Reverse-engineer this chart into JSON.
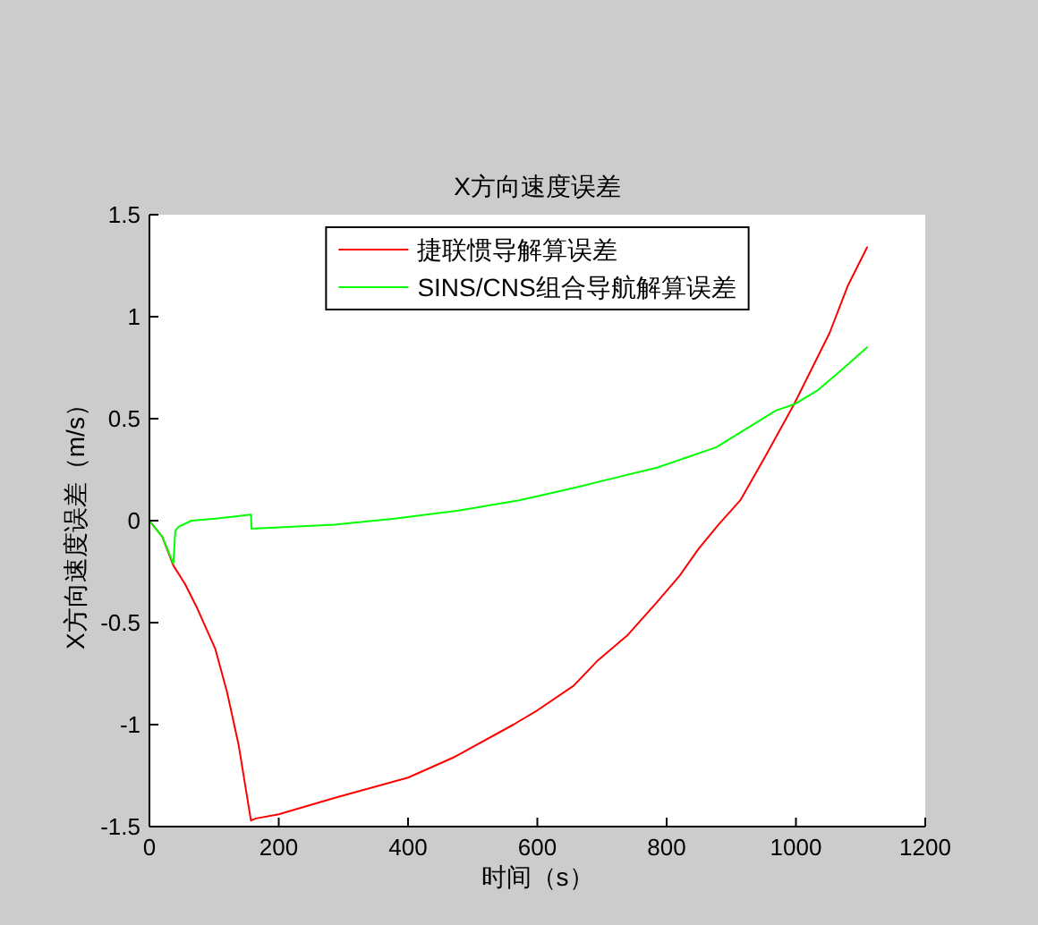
{
  "chart_data": {
    "type": "line",
    "title": "X方向速度误差",
    "xlabel": "时间（s）",
    "ylabel": "X方向速度误差（m/s）",
    "xlim": [
      0,
      1200
    ],
    "ylim": [
      -1.5,
      1.5
    ],
    "xticks": [
      0,
      200,
      400,
      600,
      800,
      1000,
      1200
    ],
    "yticks": [
      -1.5,
      -1,
      -0.5,
      0,
      0.5,
      1,
      1.5
    ],
    "legend": "top",
    "series": [
      {
        "name": "捷联惯导解算误差",
        "color": "#ff0000",
        "x": [
          0,
          20,
          37,
          55,
          74,
          102,
          120,
          138,
          157,
          165,
          200,
          286,
          400,
          471,
          563,
          600,
          656,
          692,
          740,
          785,
          820,
          849,
          880,
          914,
          950,
          997,
          1052,
          1080,
          1110
        ],
        "values": [
          0,
          -0.08,
          -0.22,
          -0.31,
          -0.43,
          -0.63,
          -0.84,
          -1.1,
          -1.47,
          -1.46,
          -1.44,
          -1.36,
          -1.26,
          -1.16,
          -1.0,
          -0.93,
          -0.81,
          -0.69,
          -0.56,
          -0.4,
          -0.27,
          -0.14,
          -0.02,
          0.1,
          0.3,
          0.57,
          0.92,
          1.15,
          1.34
        ]
      },
      {
        "name": "SINS/CNS组合导航解算误差",
        "color": "#00ff00",
        "x": [
          0,
          20,
          37,
          40,
          45,
          65,
          102,
          157,
          158,
          286,
          379,
          480,
          572,
          656,
          720,
          785,
          877,
          969,
          997,
          1034,
          1071,
          1110
        ],
        "values": [
          0,
          -0.08,
          -0.21,
          -0.05,
          -0.03,
          0,
          0.01,
          0.03,
          -0.04,
          -0.02,
          0.01,
          0.05,
          0.1,
          0.16,
          0.21,
          0.26,
          0.36,
          0.54,
          0.57,
          0.64,
          0.74,
          0.85
        ]
      }
    ]
  }
}
